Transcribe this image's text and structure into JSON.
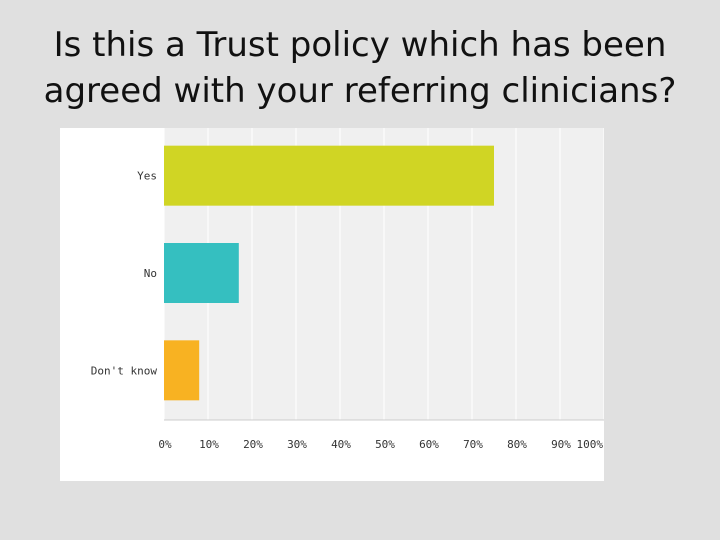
{
  "slide": {
    "title": "Is this a Trust policy which has been agreed with your referring clinicians?"
  },
  "chart_data": {
    "type": "bar",
    "orientation": "horizontal",
    "title": "",
    "xlabel": "",
    "ylabel": "",
    "categories": [
      "Yes",
      "No",
      "Don't know"
    ],
    "values": [
      75,
      17,
      8
    ],
    "colors": [
      "#d0d524",
      "#35bfc0",
      "#f8b222"
    ],
    "xlim": [
      0,
      100
    ],
    "x_ticks": [
      0,
      10,
      20,
      30,
      40,
      50,
      60,
      70,
      80,
      90,
      100
    ],
    "x_tick_labels": [
      "0%",
      "10%",
      "20%",
      "30%",
      "40%",
      "50%",
      "60%",
      "70%",
      "80%",
      "90%",
      "100%"
    ],
    "grid": true,
    "plot_background": "#f0f0f0",
    "grid_color": "#ffffff"
  }
}
